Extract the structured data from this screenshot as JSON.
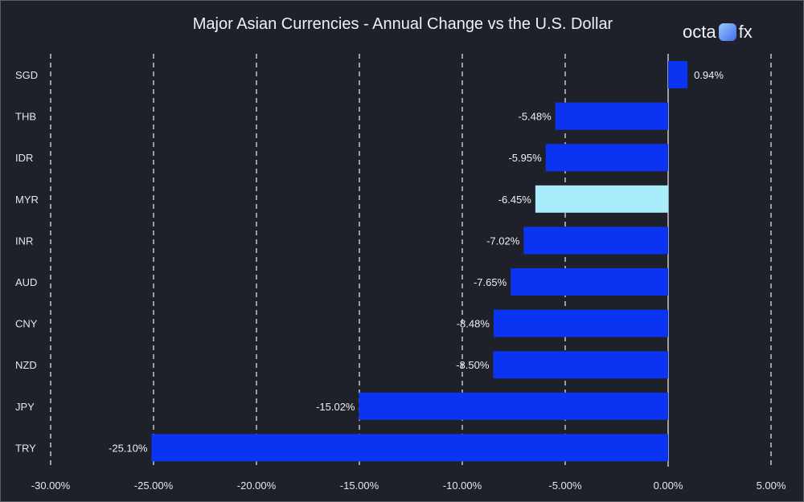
{
  "chart_data": {
    "type": "bar",
    "orientation": "horizontal",
    "title": "Major Asian Currencies - Annual Change vs the U.S. Dollar",
    "categories": [
      "SGD",
      "THB",
      "IDR",
      "MYR",
      "INR",
      "AUD",
      "CNY",
      "NZD",
      "JPY",
      "TRY"
    ],
    "values": [
      0.94,
      -5.48,
      -5.95,
      -6.45,
      -7.02,
      -7.65,
      -8.48,
      -8.5,
      -15.02,
      -25.1
    ],
    "data_labels": [
      "0.94%",
      "-5.48%",
      "-5.95%",
      "-6.45%",
      "-7.02%",
      "-7.65%",
      "-8.48%",
      "-8.50%",
      "-15.02%",
      "-25.10%"
    ],
    "xlim": [
      -30,
      5
    ],
    "x_ticks": [
      -30,
      -25,
      -20,
      -15,
      -10,
      -5,
      0,
      5
    ],
    "x_tick_labels": [
      "-30.00%",
      "-25.00%",
      "-20.00%",
      "-15.00%",
      "-10.00%",
      "-5.00%",
      "0.00%",
      "5.00%"
    ],
    "grid": "vertical dashed",
    "colors": {
      "bar": "#0b33f2",
      "highlight": "#a9ecfb",
      "highlight_category": "MYR",
      "background": "#1e2129"
    }
  },
  "logo": {
    "text_left": "octa",
    "text_right": "fx"
  }
}
